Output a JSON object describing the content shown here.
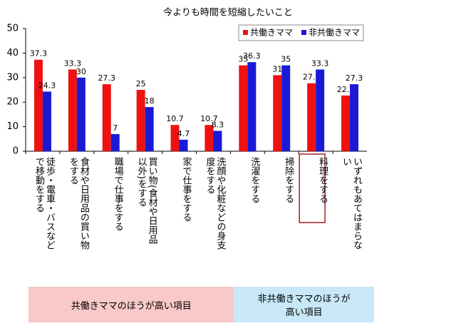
{
  "chart_data": {
    "type": "bar",
    "title": "今よりも時間を短縮したいこと",
    "categories": [
      "徒歩・電車・バスなどで移動をする",
      "食材や日用品の買い物をする",
      "職場で仕事をする",
      "買い物(食材や日用品以外)をする",
      "家で仕事をする",
      "洗顔や化粧などの身支度をする",
      "洗濯をする",
      "掃除をする",
      "料理をする",
      "いずれもあてはまらない"
    ],
    "series": [
      {
        "name": "共働きママ",
        "color": "#ee1111",
        "values": [
          37.3,
          33.3,
          27.3,
          25,
          10.7,
          10.7,
          35,
          31,
          27.7,
          22.7
        ]
      },
      {
        "name": "非共働きママ",
        "color": "#1a1ad6",
        "values": [
          24.3,
          30,
          7,
          18,
          4.7,
          8.3,
          36.3,
          35,
          33.3,
          27.3
        ]
      }
    ],
    "ylim": [
      0,
      50
    ],
    "yticks": [
      0,
      10,
      20,
      30,
      40,
      50
    ],
    "annotations": [
      {
        "text": "共働きママのほうが高い項目",
        "color": "#f9c8c8"
      },
      {
        "text": "非共働きママのほうが高い項目",
        "color": "#c8e8f8"
      }
    ]
  }
}
